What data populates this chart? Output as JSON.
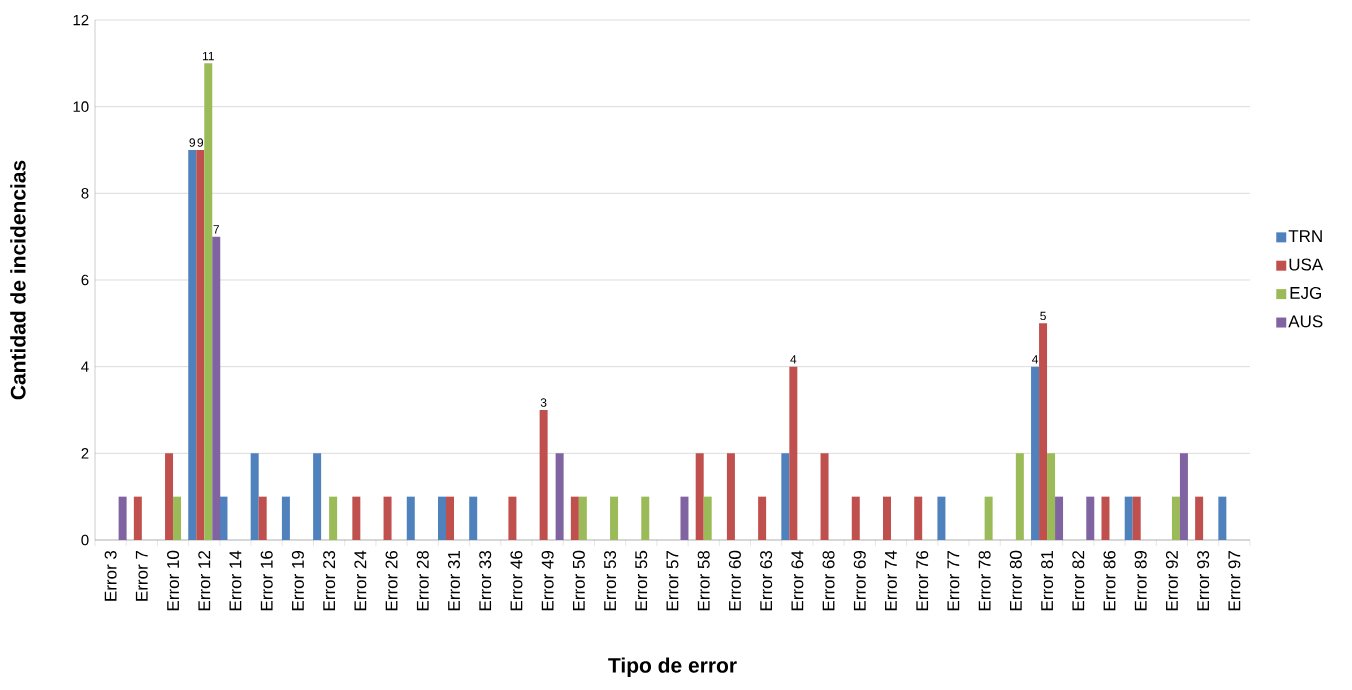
{
  "chart_data": {
    "type": "bar",
    "xlabel": "Tipo de error",
    "ylabel": "Cantidad de incidencias",
    "categories": [
      "Error 3",
      "Error 7",
      "Error 10",
      "Error 12",
      "Error 14",
      "Error 16",
      "Error 19",
      "Error 23",
      "Error 24",
      "Error 26",
      "Error 28",
      "Error 31",
      "Error 33",
      "Error 46",
      "Error 49",
      "Error 50",
      "Error 53",
      "Error 55",
      "Error 57",
      "Error 58",
      "Error 60",
      "Error 63",
      "Error 64",
      "Error 68",
      "Error 69",
      "Error 74",
      "Error 76",
      "Error 77",
      "Error 78",
      "Error 80",
      "Error 81",
      "Error 82",
      "Error 86",
      "Error 89",
      "Error 92",
      "Error 93",
      "Error 97"
    ],
    "series": [
      {
        "name": "TRN",
        "color": "#4f81bd",
        "values": [
          null,
          null,
          null,
          9,
          1,
          2,
          1,
          2,
          null,
          null,
          1,
          1,
          1,
          null,
          null,
          null,
          null,
          null,
          null,
          null,
          null,
          null,
          2,
          null,
          null,
          null,
          null,
          1,
          null,
          null,
          4,
          null,
          null,
          1,
          null,
          null,
          1
        ],
        "value_labels": [
          null,
          null,
          null,
          "9",
          null,
          null,
          null,
          null,
          null,
          null,
          null,
          null,
          null,
          null,
          null,
          null,
          null,
          null,
          null,
          null,
          null,
          null,
          null,
          null,
          null,
          null,
          null,
          null,
          null,
          null,
          "4",
          null,
          null,
          null,
          null,
          null,
          null
        ]
      },
      {
        "name": "USA",
        "color": "#c0504d",
        "values": [
          null,
          1,
          2,
          9,
          null,
          1,
          null,
          null,
          1,
          1,
          null,
          1,
          null,
          1,
          3,
          1,
          null,
          null,
          null,
          2,
          2,
          1,
          4,
          2,
          1,
          1,
          1,
          null,
          null,
          null,
          5,
          null,
          1,
          1,
          null,
          1,
          null
        ],
        "value_labels": [
          null,
          null,
          null,
          "9",
          null,
          null,
          null,
          null,
          null,
          null,
          null,
          null,
          null,
          null,
          "3",
          null,
          null,
          null,
          null,
          null,
          null,
          null,
          "4",
          null,
          null,
          null,
          null,
          null,
          null,
          null,
          "5",
          null,
          null,
          null,
          null,
          null,
          null
        ]
      },
      {
        "name": "EJG",
        "color": "#9bbb59",
        "values": [
          null,
          null,
          1,
          11,
          null,
          null,
          null,
          1,
          null,
          null,
          null,
          null,
          null,
          null,
          null,
          1,
          1,
          1,
          null,
          1,
          null,
          null,
          null,
          null,
          null,
          null,
          null,
          null,
          1,
          2,
          2,
          null,
          null,
          null,
          1,
          null,
          null
        ],
        "value_labels": [
          null,
          null,
          null,
          "11",
          null,
          null,
          null,
          null,
          null,
          null,
          null,
          null,
          null,
          null,
          null,
          null,
          null,
          null,
          null,
          null,
          null,
          null,
          null,
          null,
          null,
          null,
          null,
          null,
          null,
          null,
          null,
          null,
          null,
          null,
          null,
          null,
          null
        ]
      },
      {
        "name": "AUS",
        "color": "#8064a2",
        "values": [
          1,
          null,
          null,
          7,
          null,
          null,
          null,
          null,
          null,
          null,
          null,
          null,
          null,
          null,
          2,
          null,
          null,
          null,
          1,
          null,
          null,
          null,
          null,
          null,
          null,
          null,
          null,
          null,
          null,
          null,
          1,
          1,
          null,
          null,
          2,
          null,
          null
        ],
        "value_labels": [
          null,
          null,
          null,
          "7",
          null,
          null,
          null,
          null,
          null,
          null,
          null,
          null,
          null,
          null,
          null,
          null,
          null,
          null,
          null,
          null,
          null,
          null,
          null,
          null,
          null,
          null,
          null,
          null,
          null,
          null,
          null,
          null,
          null,
          null,
          null,
          null,
          null
        ]
      }
    ],
    "ylim": [
      0,
      12
    ],
    "yticks": [
      0,
      2,
      4,
      6,
      8,
      10,
      12
    ],
    "grid": "y",
    "legend": "right"
  }
}
